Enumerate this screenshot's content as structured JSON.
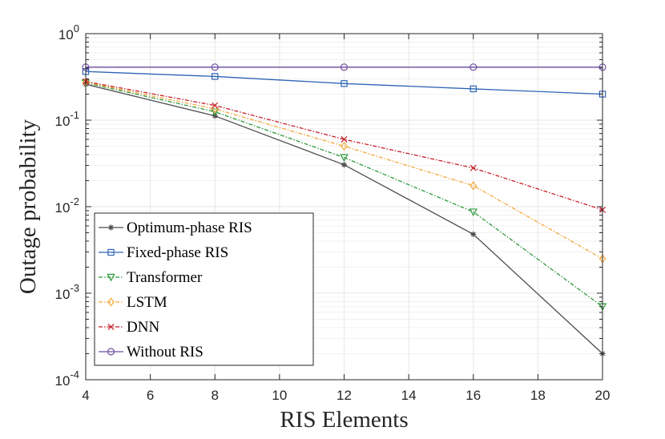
{
  "chart_data": {
    "type": "line",
    "title": "",
    "xlabel": "RIS Elements",
    "ylabel": "Outage probability",
    "x": [
      4,
      8,
      12,
      16,
      20
    ],
    "xlim": [
      4,
      20
    ],
    "xticks": [
      4,
      6,
      8,
      10,
      12,
      14,
      16,
      18,
      20
    ],
    "yscale": "log",
    "ylim": [
      0.0001,
      1
    ],
    "yticks": [
      {
        "base": "10",
        "exp": "0"
      },
      {
        "base": "10",
        "exp": "-1"
      },
      {
        "base": "10",
        "exp": "-2"
      },
      {
        "base": "10",
        "exp": "-3"
      },
      {
        "base": "10",
        "exp": "-4"
      }
    ],
    "grid": true,
    "legend_position": "bottom-left",
    "series": [
      {
        "name": "Optimum-phase RIS",
        "values": [
          0.26,
          0.112,
          0.0305,
          0.0048,
          0.0002
        ],
        "color": "#4d4d4d",
        "marker": "star",
        "dash": "solid"
      },
      {
        "name": "Fixed-phase RIS",
        "values": [
          0.365,
          0.32,
          0.265,
          0.23,
          0.2
        ],
        "color": "#2e64b5",
        "marker": "square",
        "dash": "solid"
      },
      {
        "name": "Transformer",
        "values": [
          0.27,
          0.125,
          0.037,
          0.0087,
          0.0007
        ],
        "color": "#2f9a3e",
        "marker": "triangle-down",
        "dash": "dashdot"
      },
      {
        "name": "LSTM",
        "values": [
          0.275,
          0.135,
          0.05,
          0.0175,
          0.0025
        ],
        "color": "#f5a83b",
        "marker": "diamond",
        "dash": "dashdot"
      },
      {
        "name": "DNN",
        "values": [
          0.28,
          0.148,
          0.06,
          0.028,
          0.0092
        ],
        "color": "#c6202a",
        "marker": "x",
        "dash": "dashdot"
      },
      {
        "name": "Without RIS",
        "values": [
          0.41,
          0.41,
          0.41,
          0.41,
          0.41
        ],
        "color": "#6e4fa3",
        "marker": "circle",
        "dash": "solid"
      }
    ]
  }
}
